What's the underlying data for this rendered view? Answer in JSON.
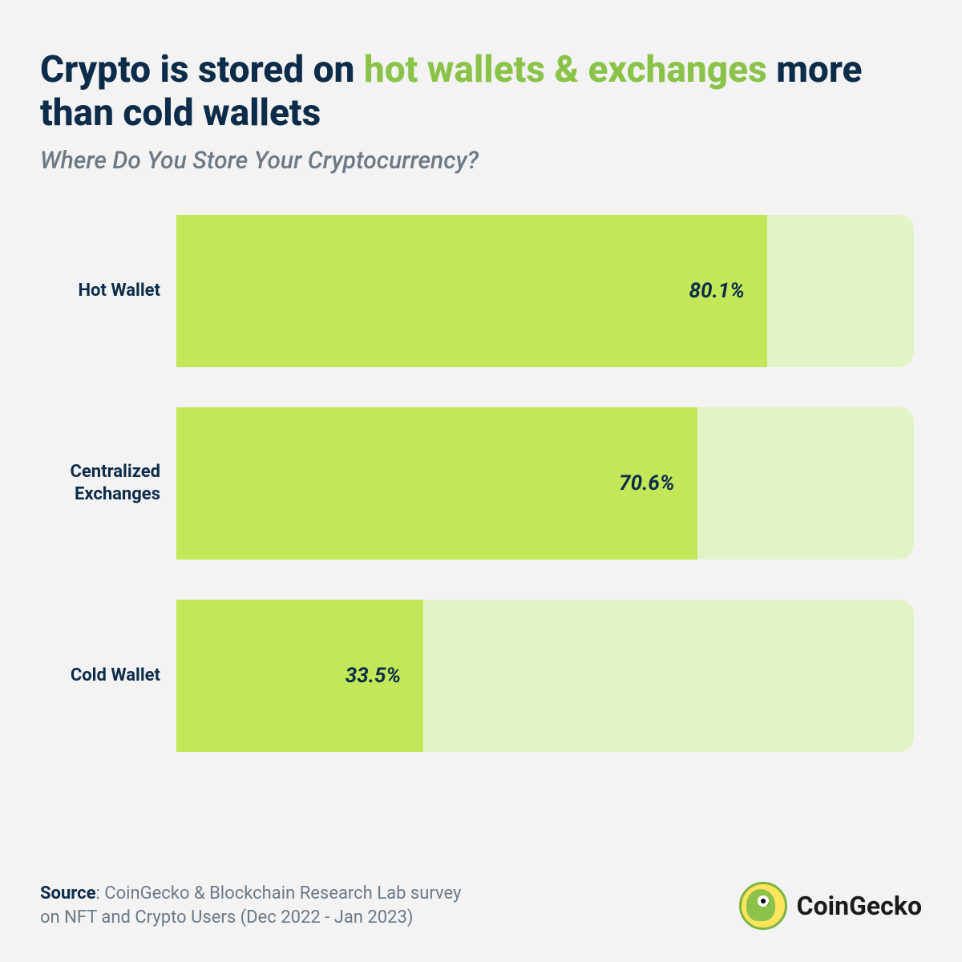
{
  "title": {
    "pre": "Crypto is stored on ",
    "highlight": "hot wallets & exchanges",
    "post": " more than cold wallets",
    "color_main": "#0d2c4a",
    "color_highlight": "#8bc34a",
    "fontsize": 46
  },
  "subtitle": {
    "text": "Where Do You Store Your Cryptocurrency?",
    "color": "#6d7a86",
    "fontsize": 30
  },
  "chart": {
    "type": "bar-horizontal",
    "xlim": [
      0,
      100
    ],
    "bar_fill_color": "#c2e859",
    "bar_track_color": "#e2f4c7",
    "bar_border_radius": 18,
    "label_inside_color": "#0d2c4a",
    "label_inside_fontsize": 26,
    "ylabel_fontsize": 22,
    "ylabel_color": "#0d2c4a",
    "background_color": "#f3f3f3",
    "rows": [
      {
        "label": "Hot Wallet",
        "value": 80.1,
        "display": "80.1%"
      },
      {
        "label": "Centralized Exchanges",
        "value": 70.6,
        "display": "70.6%"
      },
      {
        "label": "Cold Wallet",
        "value": 33.5,
        "display": "33.5%"
      }
    ]
  },
  "source": {
    "label": "Source",
    "text_line1": ": CoinGecko & Blockchain Research Lab survey",
    "text_line2": "on NFT and Crypto Users (Dec 2022 - Jan 2023)",
    "color": "#6d7a86",
    "fontsize": 22
  },
  "brand": {
    "name": "CoinGecko",
    "logo_bg": "#ffe55c",
    "logo_fg": "#8bc34a",
    "name_color": "#1b1b1b",
    "name_fontsize": 32
  }
}
